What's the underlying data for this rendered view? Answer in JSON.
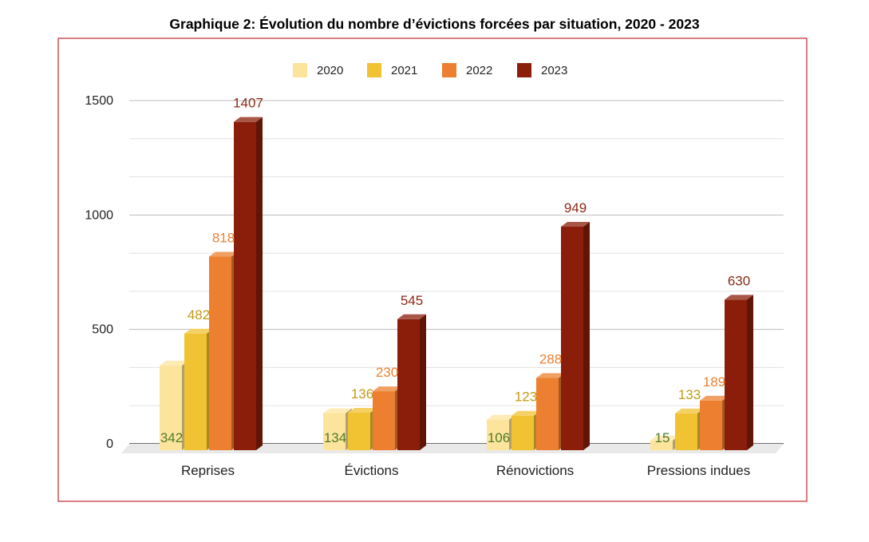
{
  "chart_data": {
    "type": "bar",
    "title": "Graphique 2: Évolution du nombre d’évictions forcées par situation, 2020 - 2023",
    "categories": [
      "Reprises",
      "Évictions",
      "Rénovictions",
      "Pressions indues"
    ],
    "series": [
      {
        "name": "2020",
        "values": [
          342,
          134,
          106,
          15
        ],
        "value_labels": [
          "342",
          "134",
          "106",
          "15"
        ],
        "color": "#FDE49C",
        "label_color": "#4E7A2A"
      },
      {
        "name": "2021",
        "values": [
          482,
          136,
          123,
          133
        ],
        "value_labels": [
          "482",
          "136",
          "123",
          "133"
        ],
        "color": "#F1C232",
        "label_color": "#C09A16"
      },
      {
        "name": "2022",
        "values": [
          818,
          230,
          288,
          189
        ],
        "value_labels": [
          "818",
          "230",
          "288",
          "189"
        ],
        "color": "#EC8030",
        "label_color": "#EC8030"
      },
      {
        "name": "2023",
        "values": [
          1407,
          545,
          949,
          630
        ],
        "value_labels": [
          "1407",
          "545",
          "949",
          "630"
        ],
        "color": "#8B1E0A",
        "label_color": "#8B2A18"
      }
    ],
    "y_ticks": [
      "0",
      "500",
      "1000",
      "1500"
    ],
    "ylim": [
      0,
      1500
    ],
    "grid": true,
    "legend_position": "top",
    "border_color": "#C0282D",
    "xlabel": "",
    "ylabel": ""
  }
}
